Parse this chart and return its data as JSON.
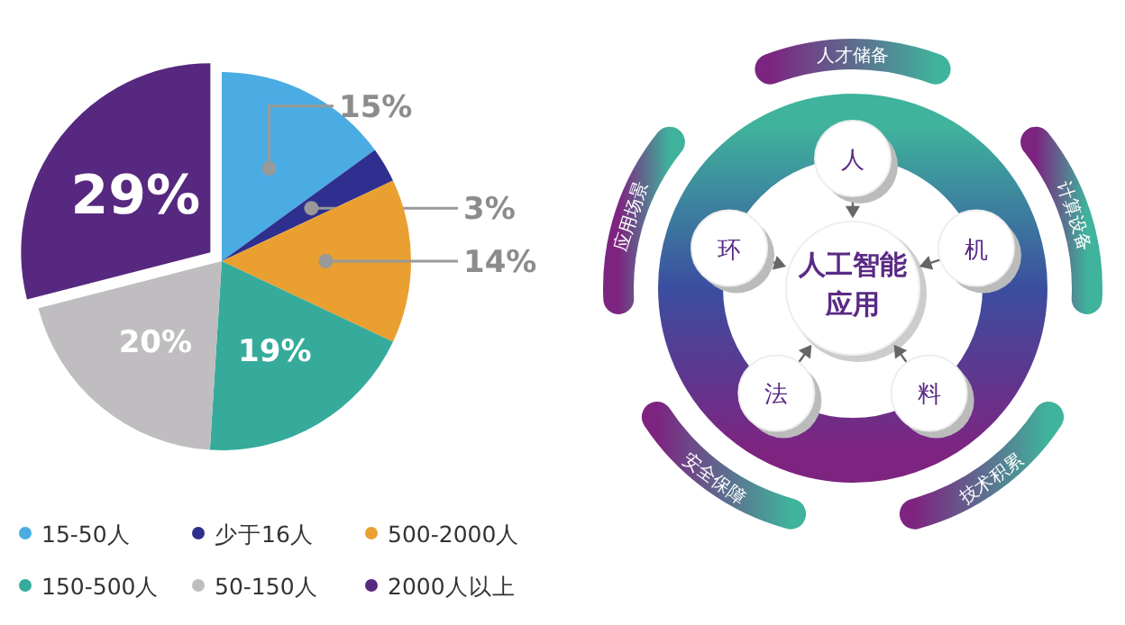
{
  "chart_data": [
    {
      "type": "pie",
      "categories": [
        "15-50人",
        "少于16人",
        "500-2000人",
        "150-500人",
        "50-150人",
        "2000人以上"
      ],
      "values": [
        15,
        3,
        14,
        19,
        20,
        29
      ],
      "colors": [
        "#4aace2",
        "#2e2f8e",
        "#e9a031",
        "#36ab9b",
        "#bfbdc0",
        "#57287f"
      ],
      "value_labels": [
        "15%",
        "3%",
        "14%",
        "19%",
        "20%",
        "29%"
      ],
      "legend": "bottom"
    },
    {
      "type": "other",
      "annotations": [
        "人工智能应用",
        "人",
        "机",
        "料",
        "法",
        "环",
        "人才储备",
        "计算设备",
        "技术积累",
        "安全保障",
        "应用场景"
      ]
    }
  ]
}
